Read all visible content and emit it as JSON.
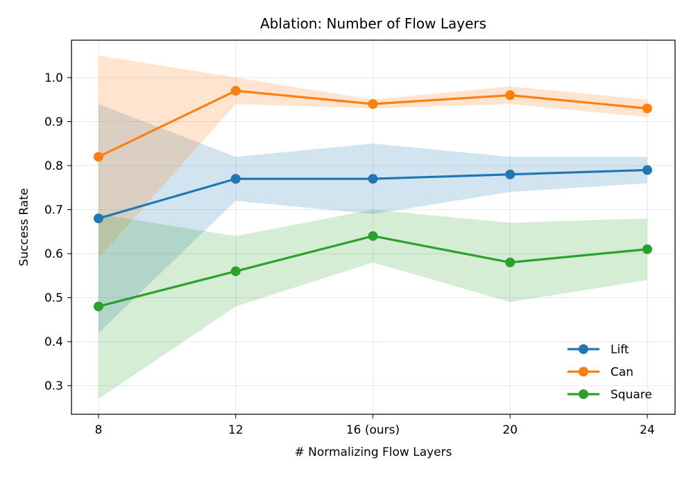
{
  "chart_data": {
    "type": "line",
    "title": "Ablation: Number of Flow Layers",
    "xlabel": "# Normalizing Flow Layers",
    "ylabel": "Success Rate",
    "categories": [
      "8",
      "12",
      "16 (ours)",
      "20",
      "24"
    ],
    "ylim": [
      0.235,
      1.085
    ],
    "yticks": [
      "0.3",
      "0.4",
      "0.5",
      "0.6",
      "0.7",
      "0.8",
      "0.9",
      "1.0"
    ],
    "grid": true,
    "legend_position": "bottom-right",
    "series": [
      {
        "name": "Lift",
        "color": "#1f77b4",
        "values": [
          0.68,
          0.77,
          0.77,
          0.78,
          0.79
        ],
        "lower": [
          0.42,
          0.72,
          0.69,
          0.74,
          0.76
        ],
        "upper": [
          0.94,
          0.82,
          0.85,
          0.82,
          0.82
        ]
      },
      {
        "name": "Can",
        "color": "#ff7f0e",
        "values": [
          0.82,
          0.97,
          0.94,
          0.96,
          0.93
        ],
        "lower": [
          0.59,
          0.94,
          0.93,
          0.94,
          0.91
        ],
        "upper": [
          1.05,
          1.0,
          0.95,
          0.98,
          0.95
        ]
      },
      {
        "name": "Square",
        "color": "#2ca02c",
        "values": [
          0.48,
          0.56,
          0.64,
          0.58,
          0.61
        ],
        "lower": [
          0.27,
          0.48,
          0.58,
          0.49,
          0.54
        ],
        "upper": [
          0.69,
          0.64,
          0.7,
          0.67,
          0.68
        ]
      }
    ]
  }
}
